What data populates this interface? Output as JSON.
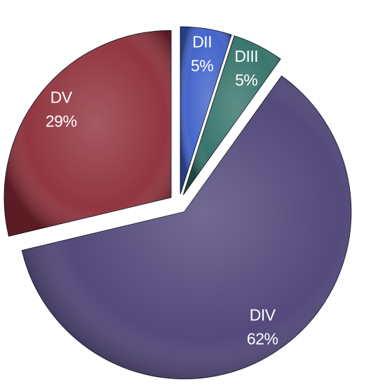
{
  "chart_data": {
    "type": "pie",
    "categories": [
      "DII",
      "DIII",
      "DIV",
      "DV"
    ],
    "values": [
      5,
      5,
      62,
      29
    ],
    "value_labels": [
      "5%",
      "5%",
      "62%",
      "29%"
    ],
    "colors": [
      "#3b5fc9",
      "#2f6f66",
      "#4b4074",
      "#8c2b36"
    ]
  }
}
